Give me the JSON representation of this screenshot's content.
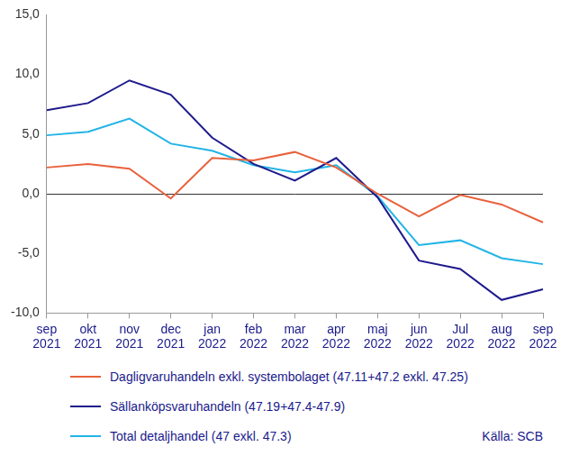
{
  "chart_data": {
    "type": "line",
    "categories": [
      "sep 2021",
      "okt 2021",
      "nov 2021",
      "dec 2021",
      "jan 2022",
      "feb 2022",
      "mar 2022",
      "apr 2022",
      "maj 2022",
      "jun 2022",
      "Jul 2022",
      "aug 2022",
      "sep 2022"
    ],
    "series": [
      {
        "name": "Dagligvaruhandeln exkl. systembolaget (47.11+47.2 exkl. 47.25)",
        "color": "#e8613c",
        "values": [
          2.2,
          2.5,
          2.1,
          -0.4,
          3.0,
          2.8,
          3.5,
          2.2,
          0.0,
          -1.9,
          -0.1,
          -0.9,
          -2.4
        ]
      },
      {
        "name": "Sällanköpsvaruhandeln (47.19+47.4-47.9)",
        "color": "#1e1a8c",
        "values": [
          7.0,
          7.6,
          9.5,
          8.3,
          4.7,
          2.5,
          1.1,
          3.0,
          -0.3,
          -5.6,
          -6.3,
          -8.9,
          -8.0
        ]
      },
      {
        "name": "Total detaljhandel (47 exkl. 47.3)",
        "color": "#22b4e6",
        "values": [
          4.9,
          5.2,
          6.3,
          4.2,
          3.6,
          2.4,
          1.8,
          2.4,
          -0.2,
          -4.3,
          -3.9,
          -5.4,
          -5.9
        ]
      }
    ],
    "ylim": [
      -10,
      15
    ],
    "yticks": [
      {
        "value": -10,
        "label": "-10,0"
      },
      {
        "value": -5,
        "label": "-5,0"
      },
      {
        "value": 0,
        "label": "0,0"
      },
      {
        "value": 5,
        "label": "5,0"
      },
      {
        "value": 10,
        "label": "10,0"
      },
      {
        "value": 15,
        "label": "15,0"
      }
    ],
    "grid": false,
    "legend": "bottom",
    "source": "Källa: SCB"
  }
}
